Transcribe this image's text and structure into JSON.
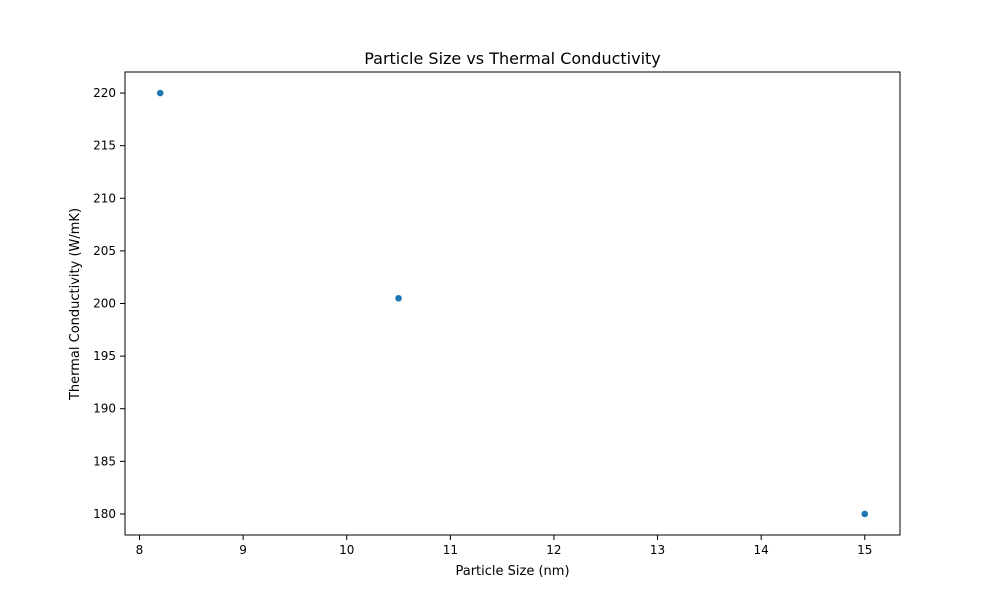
{
  "chart_data": {
    "type": "scatter",
    "title": "Particle Size vs Thermal Conductivity",
    "xlabel": "Particle Size (nm)",
    "ylabel": "Thermal Conductivity (W/mK)",
    "x": [
      8.2,
      10.5,
      15.0
    ],
    "y": [
      220.0,
      200.5,
      180.0
    ],
    "xlim": [
      7.86,
      15.34
    ],
    "ylim": [
      178.0,
      222.0
    ],
    "xticks": [
      8,
      9,
      10,
      11,
      12,
      13,
      14,
      15
    ],
    "yticks": [
      180,
      185,
      190,
      195,
      200,
      205,
      210,
      215,
      220
    ],
    "grid": false,
    "marker_color": "#1f77b4"
  }
}
